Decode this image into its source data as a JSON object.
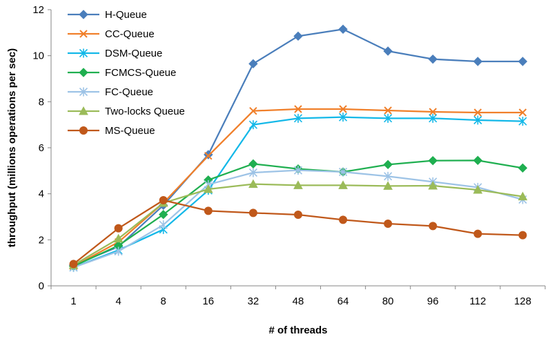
{
  "chart_data": {
    "type": "line",
    "title": "",
    "xlabel": "# of threads",
    "ylabel": "throughput (millions operations per sec)",
    "categories": [
      "1",
      "4",
      "8",
      "16",
      "32",
      "48",
      "64",
      "80",
      "96",
      "112",
      "128"
    ],
    "ylim": [
      0,
      12
    ],
    "yticks": [
      0,
      2,
      4,
      6,
      8,
      10,
      12
    ],
    "grid": false,
    "legend": "top-left",
    "series": [
      {
        "name": "H-Queue",
        "color": "#4A7EBB",
        "marker": "diamond",
        "values": [
          0.9,
          1.7,
          3.5,
          5.7,
          9.65,
          10.85,
          11.15,
          10.2,
          9.85,
          9.75,
          9.75
        ]
      },
      {
        "name": "CC-Queue",
        "color": "#F07F2A",
        "marker": "x",
        "values": [
          0.85,
          1.9,
          3.6,
          5.65,
          7.6,
          7.68,
          7.68,
          7.62,
          7.56,
          7.53,
          7.53
        ]
      },
      {
        "name": "DSM-Queue",
        "color": "#13B8E8",
        "marker": "star",
        "values": [
          0.8,
          1.55,
          2.45,
          4.15,
          7.0,
          7.28,
          7.33,
          7.28,
          7.28,
          7.2,
          7.15
        ]
      },
      {
        "name": "FCMCS-Queue",
        "color": "#1FAF50",
        "marker": "diamond",
        "values": [
          0.85,
          1.75,
          3.1,
          4.6,
          5.3,
          5.08,
          4.95,
          5.27,
          5.44,
          5.45,
          5.12
        ]
      },
      {
        "name": "FC-Queue",
        "color": "#9DC3E6",
        "marker": "star",
        "values": [
          0.8,
          1.5,
          2.65,
          4.4,
          4.92,
          5.02,
          4.95,
          4.76,
          4.52,
          4.28,
          3.75
        ]
      },
      {
        "name": "Two-locks Queue",
        "color": "#9BBB59",
        "marker": "triangle",
        "values": [
          0.9,
          2.05,
          3.6,
          4.2,
          4.42,
          4.37,
          4.37,
          4.34,
          4.35,
          4.17,
          3.88
        ]
      },
      {
        "name": "MS-Queue",
        "color": "#C0581A",
        "marker": "circle",
        "values": [
          0.95,
          2.5,
          3.72,
          3.26,
          3.17,
          3.09,
          2.87,
          2.7,
          2.6,
          2.26,
          2.2
        ]
      }
    ]
  }
}
